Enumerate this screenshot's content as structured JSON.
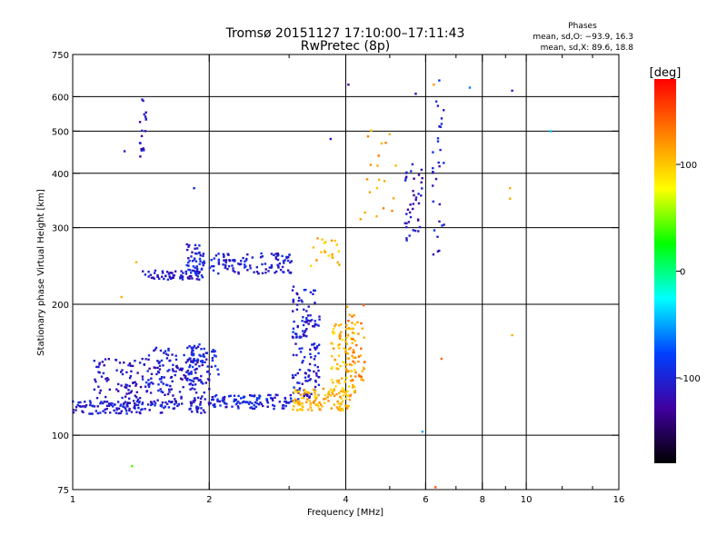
{
  "chart_data": {
    "type": "scatter",
    "title": "Tromsø 20151127 17:10:00–17:11:43",
    "subtitle": "RwPretec (8p)",
    "xlabel": "Frequency [MHz]",
    "ylabel": "Stationary phase Virtual Height [km]",
    "xscale": "log",
    "yscale": "log",
    "xlim": [
      1,
      16
    ],
    "ylim": [
      75,
      750
    ],
    "x_ticks": [
      1,
      2,
      4,
      6,
      8,
      10,
      16
    ],
    "y_ticks": [
      75,
      100,
      200,
      300,
      400,
      500,
      600,
      750
    ],
    "x_minor_ticks": [
      3,
      5,
      7,
      9,
      12,
      14
    ],
    "x_grid": [
      2,
      4,
      6,
      8,
      10
    ],
    "y_grid": [
      100,
      200,
      300,
      400,
      500,
      600
    ],
    "grid": true,
    "phases_header": "Phases",
    "phases_stats": [
      "mean, sd,O: −93.9, 16.3",
      "mean, sd,X:  89.6, 18.8"
    ],
    "colorbar": {
      "label": "[deg]",
      "range": [
        -180,
        180
      ],
      "ticks": [
        100,
        0,
        -100
      ],
      "colors": [
        "#ff0000",
        "#ff8000",
        "#ffff00",
        "#00ff00",
        "#00ffff",
        "#0040ff",
        "#4000a0",
        "#000000"
      ]
    },
    "series_clusters": [
      {
        "x_min": 1.0,
        "x_max": 2.0,
        "h_min": 112,
        "h_max": 120,
        "phase": -105,
        "count": 140
      },
      {
        "x_min": 2.0,
        "x_max": 3.05,
        "h_min": 115,
        "h_max": 124,
        "phase": -100,
        "count": 110
      },
      {
        "x_min": 1.1,
        "x_max": 2.0,
        "h_min": 118,
        "h_max": 150,
        "phase": -110,
        "count": 180
      },
      {
        "x_min": 1.45,
        "x_max": 2.1,
        "h_min": 130,
        "h_max": 160,
        "phase": -100,
        "count": 90
      },
      {
        "x_min": 1.8,
        "x_max": 1.95,
        "h_min": 130,
        "h_max": 162,
        "phase": -95,
        "count": 40
      },
      {
        "x_min": 1.42,
        "x_max": 1.9,
        "h_min": 228,
        "h_max": 240,
        "phase": -110,
        "count": 60
      },
      {
        "x_min": 1.78,
        "x_max": 1.95,
        "h_min": 228,
        "h_max": 275,
        "phase": -100,
        "count": 50
      },
      {
        "x_min": 2.0,
        "x_max": 3.05,
        "h_min": 235,
        "h_max": 262,
        "phase": -105,
        "count": 110
      },
      {
        "x_min": 3.05,
        "x_max": 3.5,
        "h_min": 120,
        "h_max": 220,
        "phase": -105,
        "count": 150
      },
      {
        "x_min": 3.05,
        "x_max": 4.1,
        "h_min": 114,
        "h_max": 128,
        "phase": 110,
        "count": 120
      },
      {
        "x_min": 3.7,
        "x_max": 4.2,
        "h_min": 124,
        "h_max": 180,
        "phase": 105,
        "count": 90
      },
      {
        "x_min": 4.0,
        "x_max": 4.4,
        "h_min": 130,
        "h_max": 200,
        "phase": 125,
        "count": 50
      },
      {
        "x_min": 3.3,
        "x_max": 3.9,
        "h_min": 245,
        "h_max": 285,
        "phase": 110,
        "count": 20
      },
      {
        "x_min": 5.4,
        "x_max": 5.9,
        "h_min": 280,
        "h_max": 420,
        "phase": -115,
        "count": 40
      },
      {
        "x_min": 6.2,
        "x_max": 6.6,
        "h_min": 260,
        "h_max": 660,
        "phase": -100,
        "count": 30
      },
      {
        "x_min": 4.3,
        "x_max": 5.2,
        "h_min": 300,
        "h_max": 520,
        "phase": 115,
        "count": 20
      },
      {
        "x_min": 1.4,
        "x_max": 1.45,
        "h_min": 430,
        "h_max": 610,
        "phase": -110,
        "count": 20
      }
    ],
    "sparse_points": [
      {
        "x": 1.3,
        "y": 450,
        "phase": -110
      },
      {
        "x": 1.85,
        "y": 370,
        "phase": -100
      },
      {
        "x": 3.7,
        "y": 480,
        "phase": -110
      },
      {
        "x": 4.05,
        "y": 640,
        "phase": -130
      },
      {
        "x": 5.7,
        "y": 610,
        "phase": -120
      },
      {
        "x": 6.25,
        "y": 640,
        "phase": 120
      },
      {
        "x": 7.5,
        "y": 630,
        "phase": -60
      },
      {
        "x": 9.3,
        "y": 620,
        "phase": -105
      },
      {
        "x": 11.3,
        "y": 500,
        "phase": -40
      },
      {
        "x": 9.2,
        "y": 370,
        "phase": 110
      },
      {
        "x": 9.2,
        "y": 350,
        "phase": 110
      },
      {
        "x": 9.3,
        "y": 170,
        "phase": 110
      },
      {
        "x": 6.5,
        "y": 150,
        "phase": 140
      },
      {
        "x": 1.35,
        "y": 85,
        "phase": 40
      },
      {
        "x": 5.9,
        "y": 102,
        "phase": -50
      },
      {
        "x": 6.3,
        "y": 76,
        "phase": 145
      },
      {
        "x": 1.28,
        "y": 208,
        "phase": 110
      },
      {
        "x": 1.38,
        "y": 250,
        "phase": 110
      }
    ]
  }
}
